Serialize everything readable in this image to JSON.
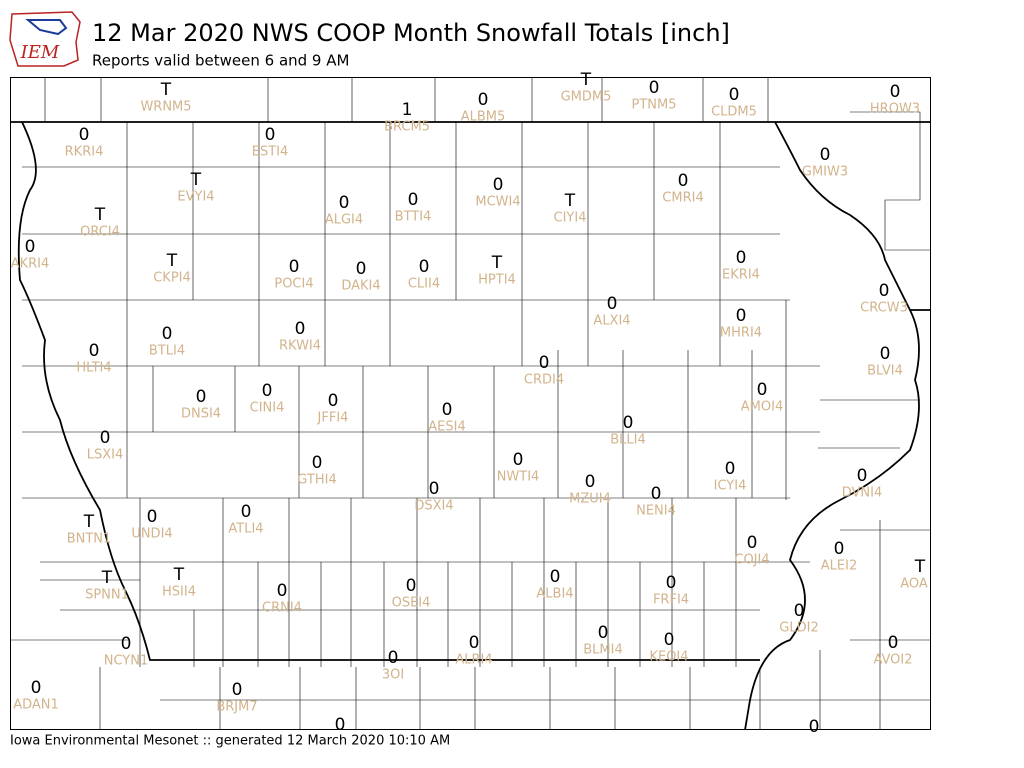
{
  "header": {
    "logo": "IEM",
    "title": "12 Mar 2020 NWS COOP Month Snowfall Totals [inch]",
    "subtitle": "Reports valid between 6 and 9 AM"
  },
  "footer": "Iowa Environmental Mesonet :: generated 12 March 2020 10:10 AM",
  "stations": [
    {
      "id": "WRNM5",
      "value": "T"
    },
    {
      "id": "GMDM5",
      "value": "T"
    },
    {
      "id": "PTNM5",
      "value": "0"
    },
    {
      "id": "CLDM5",
      "value": "0"
    },
    {
      "id": "HROW3",
      "value": "0"
    },
    {
      "id": "BRCM5",
      "value": "1"
    },
    {
      "id": "ALBM5",
      "value": "0"
    },
    {
      "id": "RKRI4",
      "value": "0"
    },
    {
      "id": "ESTI4",
      "value": "0"
    },
    {
      "id": "EVYI4",
      "value": "T"
    },
    {
      "id": "GMIW3",
      "value": "0"
    },
    {
      "id": "ALGI4",
      "value": "0"
    },
    {
      "id": "BTTI4",
      "value": "0"
    },
    {
      "id": "MCWI4",
      "value": "0"
    },
    {
      "id": "CIYI4",
      "value": "T"
    },
    {
      "id": "CMRI4",
      "value": "0"
    },
    {
      "id": "ORCI4",
      "value": "T"
    },
    {
      "id": "AKRI4",
      "value": "0"
    },
    {
      "id": "CKPI4",
      "value": "T"
    },
    {
      "id": "POCI4",
      "value": "0"
    },
    {
      "id": "DAKI4",
      "value": "0"
    },
    {
      "id": "CLII4",
      "value": "0"
    },
    {
      "id": "HPTI4",
      "value": "T"
    },
    {
      "id": "EKRI4",
      "value": "0"
    },
    {
      "id": "CRCW3",
      "value": "0"
    },
    {
      "id": "ALXI4",
      "value": "0"
    },
    {
      "id": "MHRI4",
      "value": "0"
    },
    {
      "id": "RKWI4",
      "value": "0"
    },
    {
      "id": "BTLI4",
      "value": "0"
    },
    {
      "id": "HLTI4",
      "value": "0"
    },
    {
      "id": "BLVI4",
      "value": "0"
    },
    {
      "id": "CRDI4",
      "value": "0"
    },
    {
      "id": "AMOI4",
      "value": "0"
    },
    {
      "id": "DNSI4",
      "value": "0"
    },
    {
      "id": "CINI4",
      "value": "0"
    },
    {
      "id": "JFFI4",
      "value": "0"
    },
    {
      "id": "AESI4",
      "value": "0"
    },
    {
      "id": "BLLI4",
      "value": "0"
    },
    {
      "id": "LSXI4",
      "value": "0"
    },
    {
      "id": "GTHI4",
      "value": "0"
    },
    {
      "id": "NWTI4",
      "value": "0"
    },
    {
      "id": "ICYI4",
      "value": "0"
    },
    {
      "id": "DVNI4",
      "value": "0"
    },
    {
      "id": "MZUI4",
      "value": "0"
    },
    {
      "id": "NENI4",
      "value": "0"
    },
    {
      "id": "DSXI4",
      "value": "0"
    },
    {
      "id": "ATLI4",
      "value": "0"
    },
    {
      "id": "UNDI4",
      "value": "0"
    },
    {
      "id": "BNTN1",
      "value": "T"
    },
    {
      "id": "COJI4",
      "value": "0"
    },
    {
      "id": "ALEI2",
      "value": "0"
    },
    {
      "id": "AOA",
      "value": "T"
    },
    {
      "id": "HSII4",
      "value": "T"
    },
    {
      "id": "SPNN1",
      "value": "T"
    },
    {
      "id": "CRNI4",
      "value": "0"
    },
    {
      "id": "OSEI4",
      "value": "0"
    },
    {
      "id": "ALBI4",
      "value": "0"
    },
    {
      "id": "FRFI4",
      "value": "0"
    },
    {
      "id": "GLDI2",
      "value": "0"
    },
    {
      "id": "NCYN1",
      "value": "0"
    },
    {
      "id": "ALRI4",
      "value": "0"
    },
    {
      "id": "BLMI4",
      "value": "0"
    },
    {
      "id": "KEOI4",
      "value": "0"
    },
    {
      "id": "AVOI2",
      "value": "0"
    },
    {
      "id": "3OI",
      "value": "0"
    },
    {
      "id": "ADAN1",
      "value": "0"
    },
    {
      "id": "BRJM7",
      "value": "0"
    },
    {
      "value": "0"
    },
    {
      "value": "0"
    }
  ]
}
